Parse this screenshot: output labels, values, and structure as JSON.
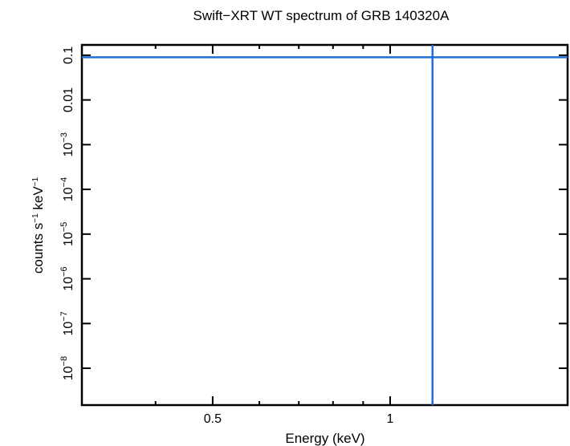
{
  "chart_data": {
    "type": "line",
    "title": "Swift−XRT WT spectrum of GRB 140320A",
    "xlabel": "Energy (keV)",
    "ylabel_parts": [
      "counts s",
      "−1",
      " keV",
      "−1"
    ],
    "x_scale": "log",
    "y_scale": "log",
    "xlim": [
      0.3,
      2.0
    ],
    "ylim": [
      1.5e-09,
      0.17
    ],
    "x_ticks": [
      {
        "value": 0.5,
        "label": "0.5"
      },
      {
        "value": 1,
        "label": "1"
      }
    ],
    "y_ticks": [
      {
        "value": 0.1,
        "base": "0.1",
        "exp": ""
      },
      {
        "value": 0.01,
        "base": "0.01",
        "exp": ""
      },
      {
        "value": 0.001,
        "base": "10",
        "exp": "−3"
      },
      {
        "value": 0.0001,
        "base": "10",
        "exp": "−4"
      },
      {
        "value": 1e-05,
        "base": "10",
        "exp": "−5"
      },
      {
        "value": 1e-06,
        "base": "10",
        "exp": "−6"
      },
      {
        "value": 1e-07,
        "base": "10",
        "exp": "−7"
      },
      {
        "value": 1e-08,
        "base": "10",
        "exp": "−8"
      }
    ],
    "series": [
      {
        "kind": "horizontal",
        "y": 0.09,
        "x_range": [
          0.3,
          2.0
        ]
      },
      {
        "kind": "vertical",
        "x": 1.18,
        "y_range": [
          1.5e-09,
          0.17
        ]
      }
    ],
    "line_color": "#1f6fd8",
    "grid": false,
    "legend": "none"
  }
}
